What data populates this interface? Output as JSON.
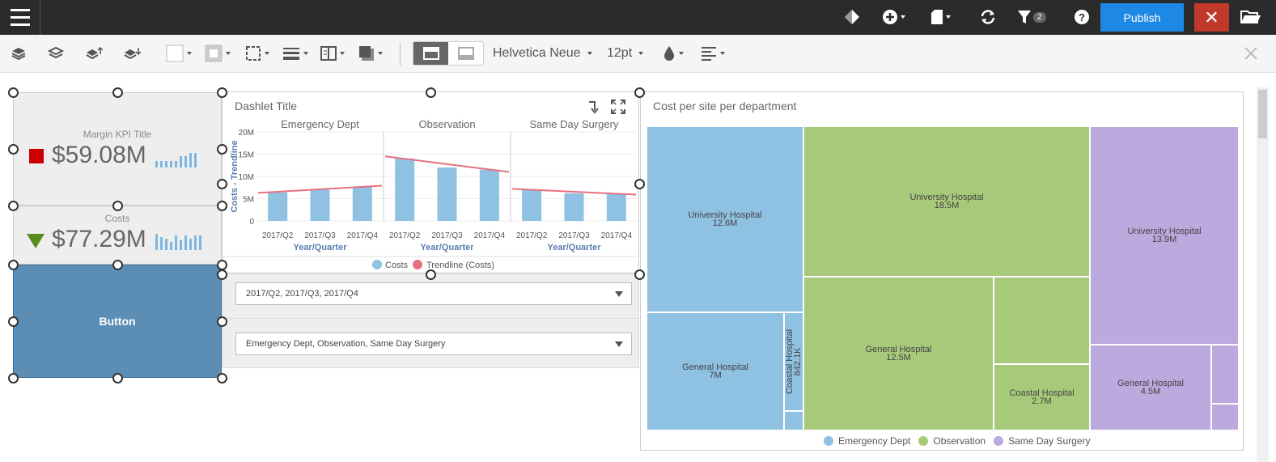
{
  "topbar": {
    "publish_label": "Publish",
    "close_label": "✕",
    "filter_count": "2"
  },
  "toolbar": {
    "font_family": "Helvetica Neue",
    "font_size": "12pt"
  },
  "kpis": [
    {
      "title": "Margin KPI Title",
      "value": "$59.08M",
      "indicator": "red-square",
      "color": "#cc0000"
    },
    {
      "title": "Costs",
      "value": "$77.29M",
      "indicator": "green-down-triangle",
      "color": "#5a8a1e"
    }
  ],
  "button_tile": {
    "label": "Button"
  },
  "dashlet": {
    "title": "Dashlet Title",
    "legend": [
      "Costs",
      "Trendline (Costs)"
    ]
  },
  "filters": [
    {
      "value": "2017/Q2, 2017/Q3, 2017/Q4"
    },
    {
      "value": "Emergency Dept, Observation, Same Day Surgery"
    }
  ],
  "treemap": {
    "title": "Cost per site per department",
    "legend": [
      "Emergency Dept",
      "Observation",
      "Same Day Surgery"
    ],
    "cells": {
      "ed_uh_name": "University Hospital",
      "ed_uh_val": "12.6M",
      "ed_gh_name": "General Hospital",
      "ed_gh_val": "7M",
      "ed_ch_name": "Coastal Hospital",
      "ed_ch_val": "842.1K",
      "ob_uh_name": "University Hospital",
      "ob_uh_val": "18.5M",
      "ob_gh_name": "General Hospital",
      "ob_gh_val": "12.5M",
      "ob_ch_name": "Coastal Hospital",
      "ob_ch_val": "2.7M",
      "sd_uh_name": "University Hospital",
      "sd_uh_val": "13.9M",
      "sd_gh_name": "General Hospital",
      "sd_gh_val": "4.5M"
    }
  },
  "colors": {
    "emergency": "#8fc1e3",
    "observation": "#a7c97a",
    "surgery": "#bca9de",
    "trend": "#e8707f"
  },
  "chart_data": {
    "type": "bar",
    "ylabel": "Costs - Trendline",
    "xlabel": "Year/Quarter",
    "ylim": [
      0,
      20
    ],
    "y_ticks": [
      "0",
      "5M",
      "10M",
      "15M",
      "20M"
    ],
    "panels": [
      {
        "name": "Emergency Dept",
        "categories": [
          "2017/Q2",
          "2017/Q3",
          "2017/Q4"
        ],
        "values": [
          6.4,
          7.0,
          7.6
        ],
        "trend": [
          6.3,
          7.9
        ]
      },
      {
        "name": "Observation",
        "categories": [
          "2017/Q2",
          "2017/Q3",
          "2017/Q4"
        ],
        "values": [
          14.0,
          12.0,
          11.5
        ],
        "trend": [
          14.5,
          11.0
        ]
      },
      {
        "name": "Same Day Surgery",
        "categories": [
          "2017/Q2",
          "2017/Q3",
          "2017/Q4"
        ],
        "values": [
          7.0,
          6.2,
          6.0
        ],
        "trend": [
          7.2,
          5.9
        ]
      }
    ]
  }
}
